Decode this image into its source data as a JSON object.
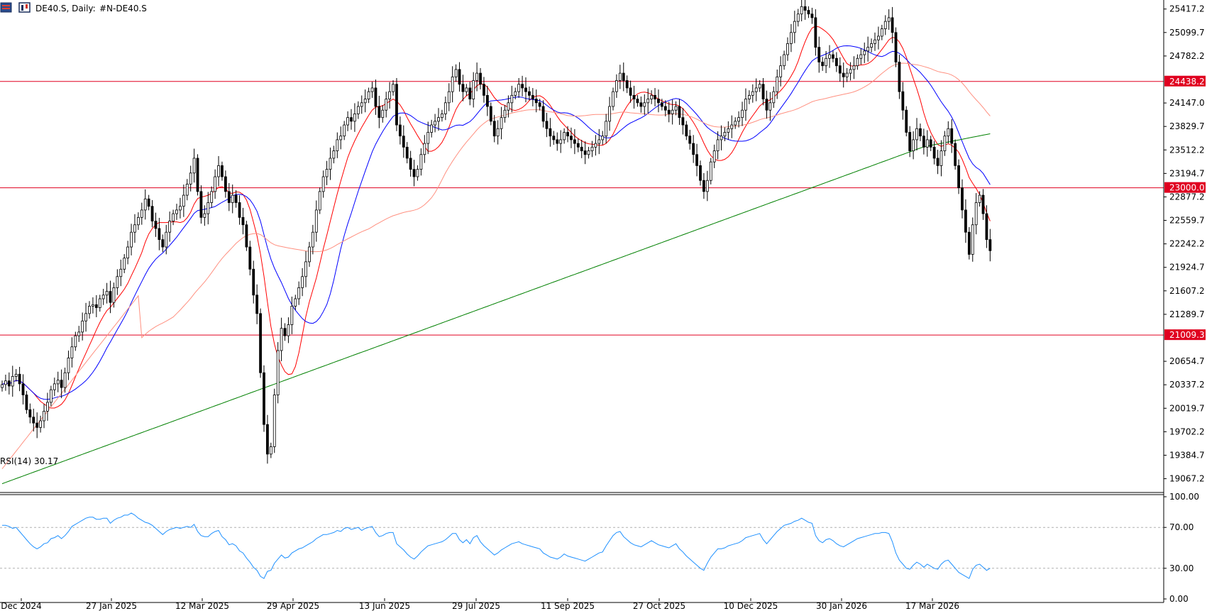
{
  "header": {
    "symbol_label": "DE40.S, Daily:",
    "description": "#N-DE40.S"
  },
  "colors": {
    "candle": "#000000",
    "ma_fast": "#ff0000",
    "ma_mid": "#0000ff",
    "ma_slow": "#ff9080",
    "ma_long": "#008000",
    "level_line": "#e00020",
    "rsi_line": "#1e90ff"
  },
  "icons": [
    "bars-chart-icon",
    "candles-chart-icon"
  ],
  "chart_data": [
    {
      "type": "candlestick",
      "title": "",
      "x_tick_labels": [
        "Dec 2024",
        "27 Jan 2025",
        "12 Mar 2025",
        "29 Apr 2025",
        "13 Jun 2025",
        "29 Jul 2025",
        "11 Sep 2025",
        "27 Oct 2025",
        "10 Dec 2025",
        "30 Jan 2026",
        "17 Mar 2026"
      ],
      "y_tick_labels": [
        "25417.2",
        "25099.7",
        "24782.2",
        "24147.0",
        "23829.7",
        "23512.2",
        "23194.7",
        "22877.2",
        "22559.7",
        "22242.2",
        "21924.7",
        "21607.2",
        "21289.7",
        "20654.7",
        "20337.2",
        "20019.7",
        "19702.2",
        "19384.7",
        "19067.2"
      ],
      "ylim": [
        18900,
        25520
      ],
      "horizontal_levels": [
        {
          "value": 24438.2,
          "label": "24438.2"
        },
        {
          "value": 23000.0,
          "label": "23000.0"
        },
        {
          "value": 21009.3,
          "label": "21009.3"
        }
      ],
      "close": [
        20340,
        20390,
        20320,
        20450,
        20480,
        20350,
        20200,
        20000,
        19900,
        19820,
        19760,
        19850,
        19980,
        20100,
        20270,
        20350,
        20400,
        20300,
        20500,
        20700,
        20850,
        21000,
        21050,
        21200,
        21300,
        21400,
        21420,
        21380,
        21500,
        21550,
        21600,
        21450,
        21650,
        21800,
        21900,
        22050,
        22200,
        22400,
        22500,
        22600,
        22700,
        22850,
        22750,
        22550,
        22450,
        22300,
        22200,
        22400,
        22550,
        22650,
        22700,
        22750,
        22900,
        23050,
        23200,
        23400,
        22950,
        22600,
        22650,
        22800,
        22950,
        23150,
        23300,
        23150,
        22950,
        22800,
        22900,
        22800,
        22600,
        22500,
        22200,
        21900,
        21550,
        21300,
        20500,
        19800,
        19400,
        19500,
        20200,
        20800,
        21100,
        21000,
        21150,
        21400,
        21500,
        21650,
        21800,
        22000,
        22200,
        22400,
        22700,
        22950,
        23150,
        23250,
        23400,
        23500,
        23650,
        23700,
        23850,
        23950,
        23900,
        24000,
        24100,
        24150,
        24200,
        24300,
        24350,
        24100,
        23950,
        24050,
        24200,
        24300,
        24400,
        23850,
        23700,
        23550,
        23400,
        23250,
        23150,
        23250,
        23450,
        23600,
        23750,
        23850,
        23900,
        23950,
        24000,
        24150,
        24300,
        24500,
        24600,
        24400,
        24300,
        24350,
        24200,
        24450,
        24550,
        24400,
        24250,
        24100,
        23900,
        23700,
        23800,
        23950,
        24050,
        24150,
        24250,
        24300,
        24400,
        24350,
        24300,
        24250,
        24200,
        24150,
        24100,
        23900,
        23800,
        23700,
        23650,
        23600,
        23650,
        23750,
        23700,
        23650,
        23600,
        23550,
        23500,
        23450,
        23500,
        23550,
        23600,
        23650,
        23700,
        23900,
        24100,
        24300,
        24450,
        24550,
        24450,
        24350,
        24250,
        24200,
        24150,
        24100,
        24150,
        24200,
        24250,
        24200,
        24150,
        24100,
        24050,
        24000,
        24050,
        24100,
        23950,
        23850,
        23700,
        23600,
        23450,
        23300,
        23100,
        22950,
        23100,
        23350,
        23500,
        23650,
        23700,
        23750,
        23800,
        23850,
        23900,
        23950,
        24050,
        24200,
        24250,
        24300,
        24350,
        24400,
        24200,
        24050,
        24150,
        24300,
        24500,
        24650,
        24800,
        24950,
        25100,
        25250,
        25350,
        25450,
        25400,
        25350,
        25300,
        24900,
        24700,
        24650,
        24750,
        24800,
        24750,
        24650,
        24550,
        24500,
        24550,
        24600,
        24650,
        24750,
        24800,
        24850,
        24900,
        24950,
        25000,
        25050,
        25150,
        25250,
        25300,
        25100,
        24700,
        24300,
        24050,
        23750,
        23500,
        23650,
        23800,
        23700,
        23550,
        23650,
        23550,
        23400,
        23300,
        23500,
        23700,
        23800,
        23600,
        23300,
        23000,
        22700,
        22400,
        22100,
        22500,
        22800,
        22900,
        22650,
        22300,
        22150
      ],
      "overlays": [
        {
          "name": "",
          "color": "#ff0000",
          "period": 10
        },
        {
          "name": "",
          "color": "#0000ff",
          "period": 20
        },
        {
          "name": "",
          "color": "#ff9080",
          "period": 50
        },
        {
          "name": "",
          "color": "#008000",
          "period": 200
        }
      ]
    },
    {
      "type": "line",
      "indicator_label": "RSI(14) 30.17",
      "ylim": [
        0,
        100
      ],
      "y_tick_labels": [
        "100.00",
        "70.00",
        "30.00",
        "0.00"
      ],
      "levels": [
        70,
        30
      ],
      "values": [
        72,
        72,
        71,
        69,
        70,
        66,
        62,
        58,
        54,
        51,
        49,
        51,
        54,
        55,
        59,
        60,
        62,
        59,
        62,
        66,
        71,
        73,
        75,
        77,
        79,
        80,
        80,
        78,
        78,
        79,
        79,
        74,
        77,
        79,
        80,
        82,
        82,
        84,
        82,
        79,
        77,
        75,
        74,
        72,
        69,
        66,
        63,
        66,
        68,
        69,
        70,
        69,
        70,
        71,
        70,
        73,
        66,
        62,
        61,
        61,
        64,
        66,
        67,
        61,
        58,
        53,
        54,
        52,
        47,
        45,
        40,
        36,
        31,
        28,
        22,
        20,
        27,
        28,
        35,
        39,
        43,
        40,
        41,
        45,
        47,
        49,
        50,
        52,
        54,
        56,
        59,
        61,
        63,
        63,
        64,
        65,
        67,
        66,
        69,
        70,
        68,
        69,
        70,
        67,
        69,
        70,
        71,
        65,
        61,
        62,
        64,
        65,
        65,
        54,
        51,
        48,
        44,
        41,
        39,
        42,
        46,
        49,
        52,
        53,
        54,
        55,
        56,
        58,
        61,
        64,
        64,
        58,
        55,
        58,
        54,
        60,
        62,
        56,
        52,
        49,
        46,
        43,
        45,
        48,
        50,
        52,
        54,
        55,
        56,
        54,
        53,
        52,
        51,
        50,
        49,
        45,
        43,
        41,
        40,
        39,
        41,
        44,
        42,
        41,
        40,
        39,
        38,
        37,
        39,
        41,
        43,
        45,
        46,
        52,
        57,
        62,
        65,
        66,
        61,
        58,
        55,
        53,
        52,
        51,
        53,
        55,
        57,
        55,
        53,
        52,
        51,
        50,
        52,
        54,
        49,
        46,
        42,
        39,
        36,
        33,
        30,
        28,
        35,
        41,
        45,
        49,
        49,
        50,
        52,
        53,
        54,
        55,
        57,
        60,
        61,
        62,
        63,
        64,
        58,
        54,
        58,
        62,
        66,
        69,
        72,
        73,
        74,
        76,
        77,
        79,
        77,
        75,
        74,
        62,
        57,
        55,
        58,
        59,
        57,
        54,
        52,
        51,
        53,
        55,
        57,
        59,
        60,
        61,
        62,
        63,
        64,
        64,
        65,
        65,
        64,
        56,
        45,
        38,
        34,
        30,
        29,
        33,
        36,
        34,
        31,
        34,
        32,
        30,
        29,
        34,
        37,
        38,
        34,
        30,
        26,
        24,
        22,
        20,
        29,
        33,
        34,
        31,
        28,
        30
      ]
    }
  ]
}
